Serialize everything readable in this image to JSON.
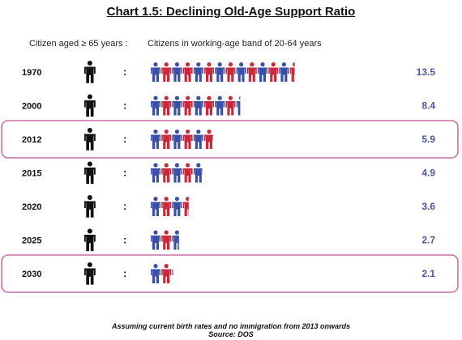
{
  "title": "Chart 1.5: Declining Old-Age Support Ratio",
  "left_header": "Citizen aged ≥ 65 years :",
  "right_header": "Citizens in working-age band of 20-64 years",
  "separator": ":",
  "footnote": "Assuming current birth rates and no immigration from 2013 onwards",
  "source": "Source: DOS",
  "colors": {
    "elderly": "#111111",
    "worker_blue": "#3a4fa8",
    "worker_red": "#c8283c",
    "value_text": "#4a55a0",
    "highlight_border": "#cc6fa8"
  },
  "chart_data": {
    "type": "pictogram",
    "title": "Chart 1.5: Declining Old-Age Support Ratio",
    "categories": [
      "1970",
      "2000",
      "2012",
      "2015",
      "2020",
      "2025",
      "2030"
    ],
    "values": [
      13.5,
      8.4,
      5.9,
      4.9,
      3.6,
      2.7,
      2.1
    ],
    "highlighted": [
      "2012",
      "2030"
    ]
  }
}
